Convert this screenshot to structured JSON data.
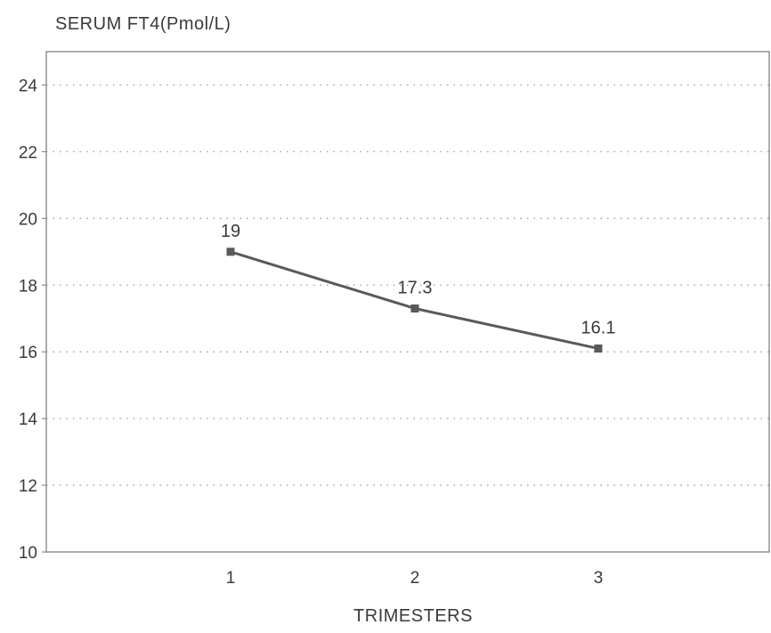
{
  "chart_data": {
    "type": "line",
    "title": "",
    "ylabel": "SERUM FT4(Pmol/L)",
    "xlabel": "TRIMESTERS",
    "x": [
      1,
      2,
      3
    ],
    "x_tick_labels": [
      "1",
      "2",
      "3"
    ],
    "ylim": [
      10,
      25
    ],
    "y_ticks": [
      10,
      12,
      14,
      16,
      18,
      20,
      22,
      24
    ],
    "y_tick_labels": [
      "10",
      "12",
      "14",
      "16",
      "18",
      "20",
      "22",
      "24"
    ],
    "grid": true,
    "series": [
      {
        "values": [
          19,
          17.3,
          16.1
        ],
        "data_labels": [
          "19",
          "17.3",
          "16.1"
        ],
        "color": "#5a5a5a"
      }
    ]
  }
}
